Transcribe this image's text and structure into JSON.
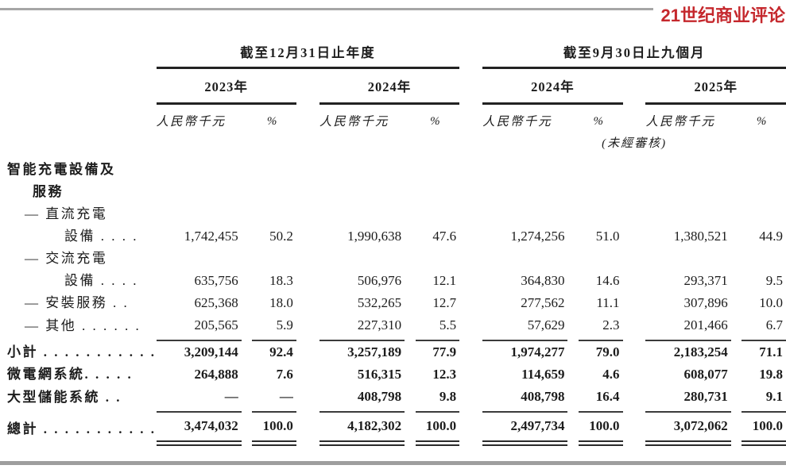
{
  "masthead": {
    "logo_text": "21世纪商业评论",
    "logo_color": "#c5282d"
  },
  "table": {
    "groups": [
      {
        "title": "截至12月31日止年度"
      },
      {
        "title": "截至9月30日止九個月"
      }
    ],
    "years": [
      "2023年",
      "2024年",
      "2024年",
      "2025年"
    ],
    "unit_label": "人民幣千元",
    "pct_label": "%",
    "unaudited_note": "(未經審核)",
    "rows": [
      {
        "label": "智能充電設備及",
        "indent": "cat",
        "bold": true,
        "values": null,
        "rule": null
      },
      {
        "label": "服務",
        "indent": "cat2",
        "bold": true,
        "values": null,
        "rule": null
      },
      {
        "label": "— 直流充電",
        "indent": "dash",
        "bold": false,
        "values": null,
        "rule": null
      },
      {
        "label": "設備 . . . .",
        "indent": "sub",
        "bold": false,
        "values": [
          "1,742,455",
          "50.2",
          "1,990,638",
          "47.6",
          "1,274,256",
          "51.0",
          "1,380,521",
          "44.9"
        ],
        "rule": null
      },
      {
        "label": "— 交流充電",
        "indent": "dash",
        "bold": false,
        "values": null,
        "rule": null
      },
      {
        "label": "設備 . . . .",
        "indent": "sub",
        "bold": false,
        "values": [
          "635,756",
          "18.3",
          "506,976",
          "12.1",
          "364,830",
          "14.6",
          "293,371",
          "9.5"
        ],
        "rule": null
      },
      {
        "label": "— 安裝服務 . .",
        "indent": "dash",
        "bold": false,
        "values": [
          "625,368",
          "18.0",
          "532,265",
          "12.7",
          "277,562",
          "11.1",
          "307,896",
          "10.0"
        ],
        "rule": null
      },
      {
        "label": "— 其他 . . . . . .",
        "indent": "dash",
        "bold": false,
        "values": [
          "205,565",
          "5.9",
          "227,310",
          "5.5",
          "57,629",
          "2.3",
          "201,466",
          "6.7"
        ],
        "rule": "single"
      },
      {
        "label": "小計 . . . . . . . . . . .",
        "indent": "total",
        "bold": true,
        "values": [
          "3,209,144",
          "92.4",
          "3,257,189",
          "77.9",
          "1,974,277",
          "79.0",
          "2,183,254",
          "71.1"
        ],
        "rule": null
      },
      {
        "label": "微電網系統. . . . .",
        "indent": "total",
        "bold": true,
        "values": [
          "264,888",
          "7.6",
          "516,315",
          "12.3",
          "114,659",
          "4.6",
          "608,077",
          "19.8"
        ],
        "rule": null
      },
      {
        "label": "大型儲能系統 . .",
        "indent": "total",
        "bold": true,
        "values": [
          "—",
          "—",
          "408,798",
          "9.8",
          "408,798",
          "16.4",
          "280,731",
          "9.1"
        ],
        "rule": "single"
      },
      {
        "label": "總計 . . . . . . . . . . .",
        "indent": "total",
        "bold": true,
        "values": [
          "3,474,032",
          "100.0",
          "4,182,302",
          "100.0",
          "2,497,734",
          "100.0",
          "3,072,062",
          "100.0"
        ],
        "rule": "double"
      }
    ]
  }
}
